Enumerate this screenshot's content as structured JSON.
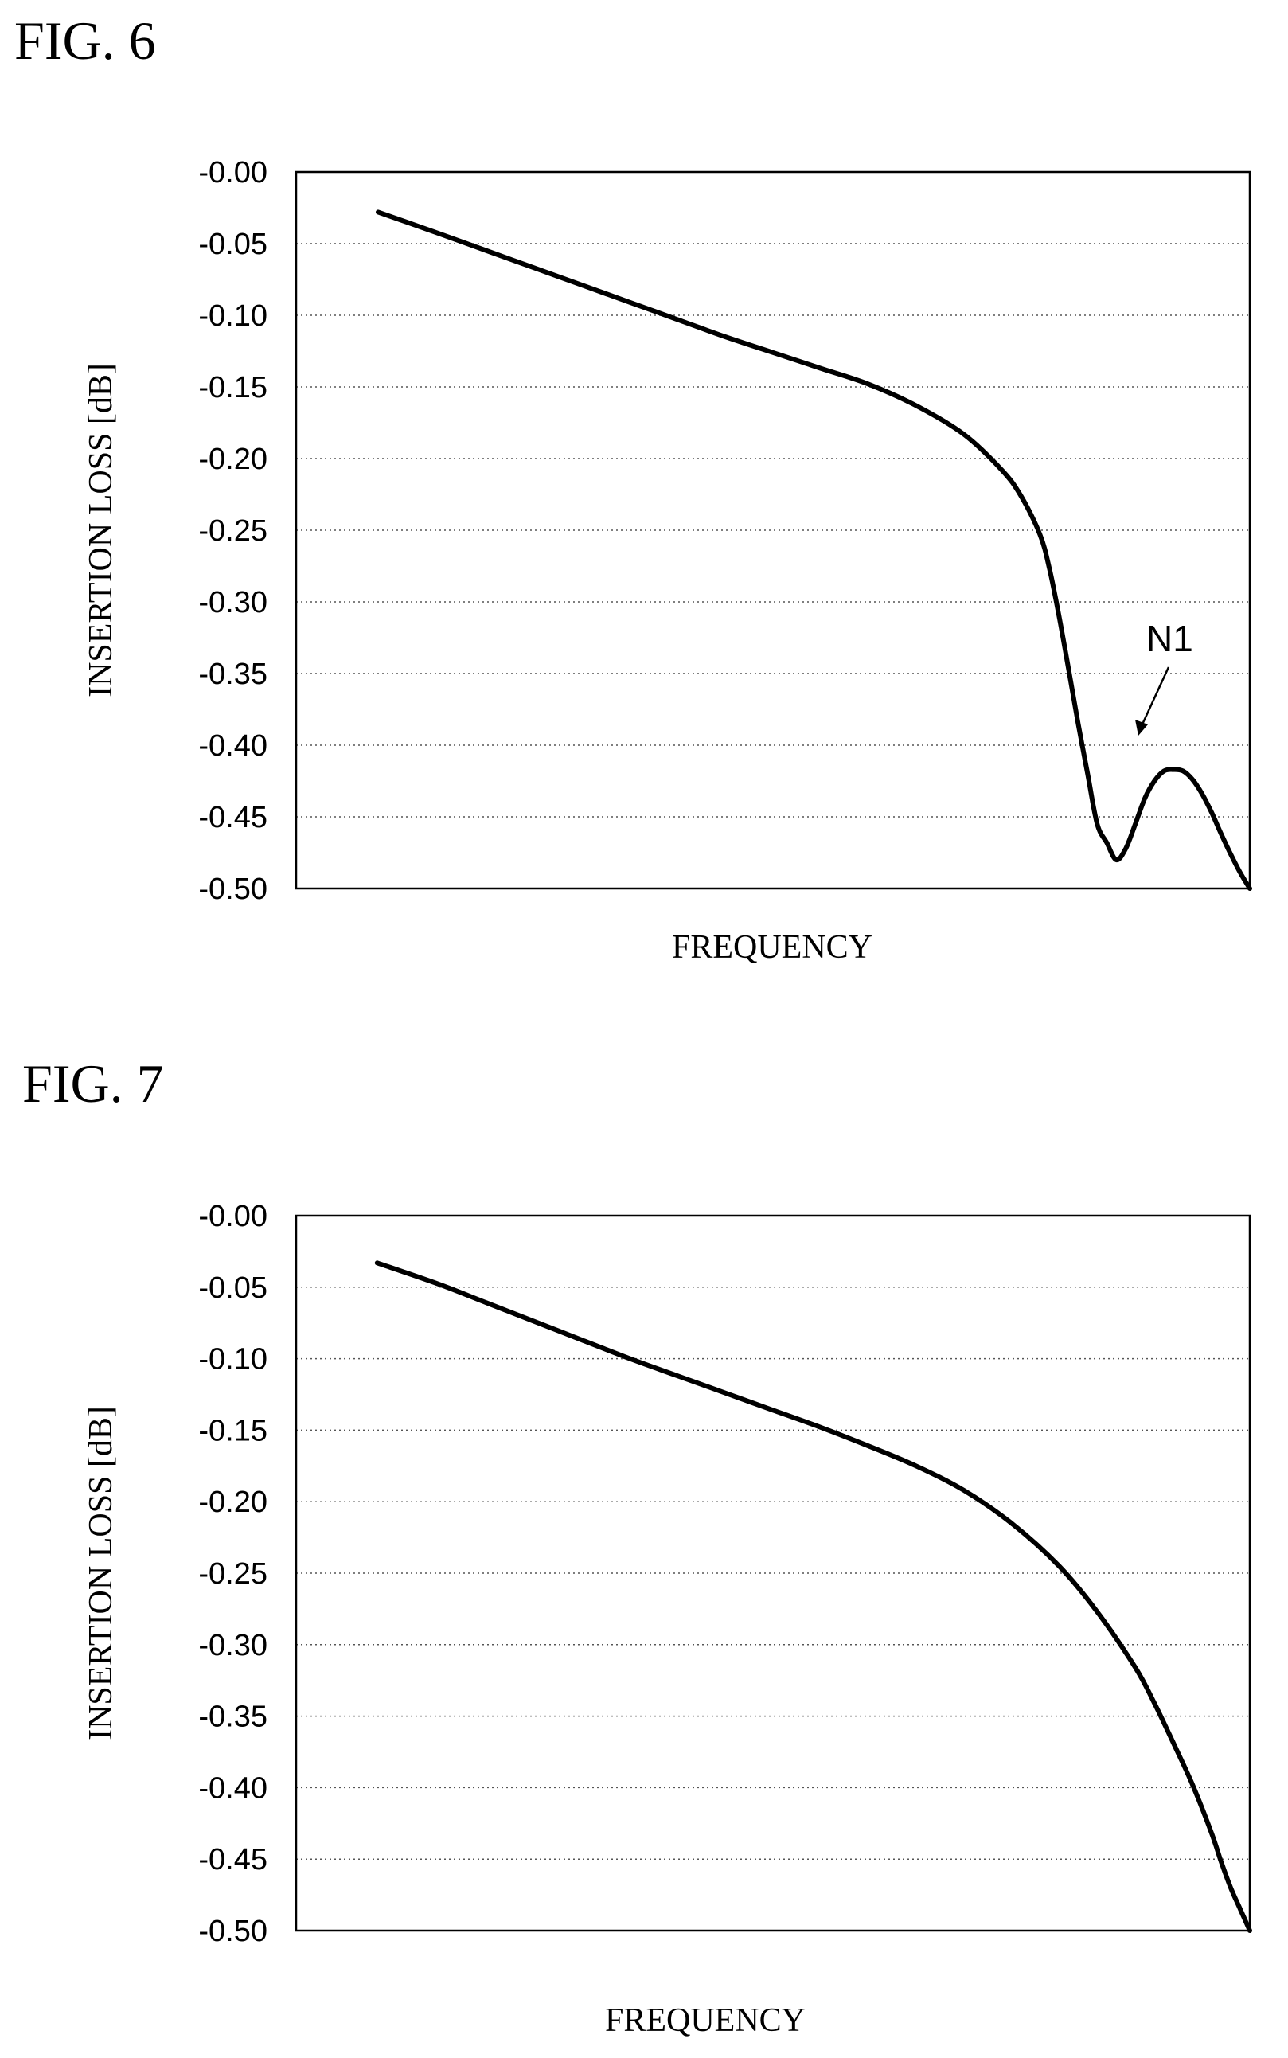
{
  "chart_data": [
    {
      "type": "line",
      "figure_label": "FIG. 6",
      "title": "",
      "xlabel": "FREQUENCY",
      "ylabel": "INSERTION LOSS [dB]",
      "ylim": [
        -0.5,
        0.0
      ],
      "yticks": [
        "-0.00",
        "-0.05",
        "-0.10",
        "-0.15",
        "-0.20",
        "-0.25",
        "-0.30",
        "-0.35",
        "-0.40",
        "-0.45",
        "-0.50"
      ],
      "xticks": [],
      "grid": true,
      "series": [
        {
          "x": [
            0.086,
            0.15,
            0.2,
            0.25,
            0.3,
            0.35,
            0.4,
            0.45,
            0.5,
            0.55,
            0.6,
            0.65,
            0.7,
            0.74,
            0.76,
            0.78,
            0.79,
            0.8,
            0.81,
            0.82,
            0.83,
            0.84,
            0.85,
            0.86,
            0.87,
            0.88,
            0.89,
            0.9,
            0.91,
            0.92,
            0.93,
            0.94,
            0.95,
            0.96,
            0.97,
            0.98,
            0.99,
            1.0
          ],
          "y": [
            -0.028,
            -0.043,
            -0.055,
            -0.067,
            -0.079,
            -0.091,
            -0.103,
            -0.115,
            -0.126,
            -0.137,
            -0.148,
            -0.163,
            -0.183,
            -0.208,
            -0.226,
            -0.253,
            -0.277,
            -0.31,
            -0.347,
            -0.385,
            -0.42,
            -0.455,
            -0.468,
            -0.48,
            -0.472,
            -0.455,
            -0.437,
            -0.425,
            -0.418,
            -0.417,
            -0.418,
            -0.424,
            -0.434,
            -0.447,
            -0.462,
            -0.476,
            -0.489,
            -0.5
          ]
        }
      ],
      "annotations": [
        {
          "text": "N1",
          "x": 0.91,
          "y": -0.42
        }
      ]
    },
    {
      "type": "line",
      "figure_label": "FIG. 7",
      "title": "",
      "xlabel": "FREQUENCY",
      "ylabel": "INSERTION LOSS [dB]",
      "ylim": [
        -0.5,
        0.0
      ],
      "yticks": [
        "-0.00",
        "-0.05",
        "-0.10",
        "-0.15",
        "-0.20",
        "-0.25",
        "-0.30",
        "-0.35",
        "-0.40",
        "-0.45",
        "-0.50"
      ],
      "xticks": [],
      "grid": true,
      "series": [
        {
          "x": [
            0.085,
            0.15,
            0.2,
            0.25,
            0.3,
            0.35,
            0.4,
            0.45,
            0.5,
            0.55,
            0.6,
            0.65,
            0.7,
            0.75,
            0.8,
            0.84,
            0.88,
            0.9,
            0.92,
            0.94,
            0.96,
            0.97,
            0.98,
            0.99,
            1.0
          ],
          "y": [
            -0.033,
            -0.048,
            -0.061,
            -0.074,
            -0.087,
            -0.1,
            -0.112,
            -0.124,
            -0.136,
            -0.148,
            -0.161,
            -0.175,
            -0.192,
            -0.215,
            -0.245,
            -0.277,
            -0.316,
            -0.341,
            -0.369,
            -0.398,
            -0.432,
            -0.452,
            -0.47,
            -0.485,
            -0.5
          ]
        }
      ],
      "annotations": []
    }
  ]
}
